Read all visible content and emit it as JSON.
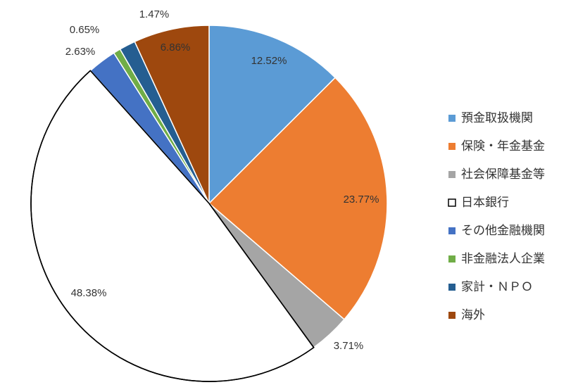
{
  "chart_data": {
    "type": "pie",
    "title": "",
    "legend_position": "right",
    "slices": [
      {
        "name": "預金取扱機関",
        "value": 12.52,
        "label": "12.52%",
        "color": "#5b9bd5"
      },
      {
        "name": "保険・年金基金",
        "value": 23.77,
        "label": "23.77%",
        "color": "#ed7d31"
      },
      {
        "name": "社会保障基金等",
        "value": 3.71,
        "label": "3.71%",
        "color": "#a5a5a5"
      },
      {
        "name": "日本銀行",
        "value": 48.38,
        "label": "48.38%",
        "color": "#ffffff",
        "stroke": "#000000"
      },
      {
        "name": "その他金融機関",
        "value": 2.63,
        "label": "2.63%",
        "color": "#4472c4"
      },
      {
        "name": "非金融法人企業",
        "value": 0.65,
        "label": "0.65%",
        "color": "#70ad47"
      },
      {
        "name": "家計・ＮＰＯ",
        "value": 1.47,
        "label": "1.47%",
        "color": "#255e91"
      },
      {
        "name": "海外",
        "value": 6.86,
        "label": "6.86%",
        "color": "#9e480e"
      }
    ]
  }
}
